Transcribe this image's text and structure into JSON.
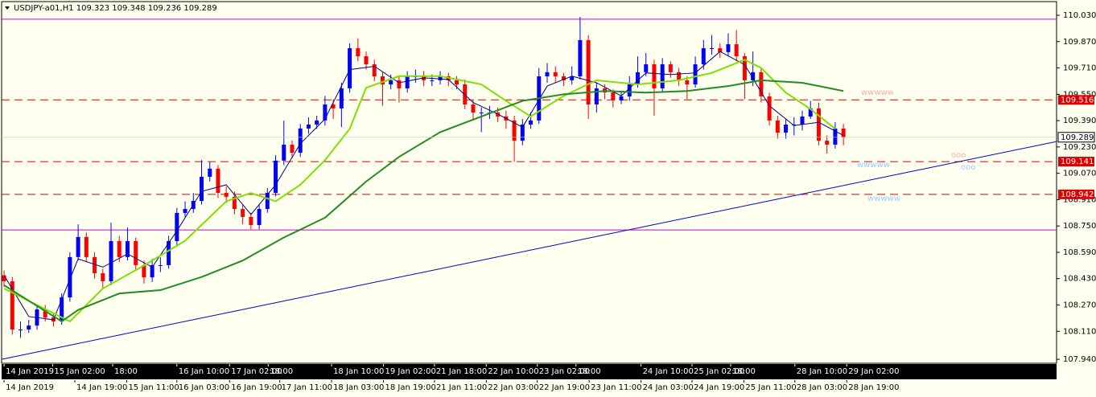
{
  "chart_data": {
    "type": "candlestick",
    "title": "USDJPY-a01,H1  109.323 109.348 109.236 109.289",
    "up_color": "#0000ff",
    "down_color": "#ff0000",
    "ohlc": [
      [
        108.45,
        108.48,
        108.38,
        108.414
      ],
      [
        108.414,
        108.44,
        108.09,
        108.121
      ],
      [
        108.121,
        108.17,
        108.07,
        108.121
      ],
      [
        108.121,
        108.18,
        108.1,
        108.145
      ],
      [
        108.145,
        108.27,
        108.12,
        108.243
      ],
      [
        108.243,
        108.27,
        108.17,
        108.194
      ],
      [
        108.194,
        108.22,
        108.14,
        108.17
      ],
      [
        108.17,
        108.34,
        108.15,
        108.316
      ],
      [
        108.316,
        108.59,
        108.29,
        108.561
      ],
      [
        108.561,
        108.76,
        108.54,
        108.683
      ],
      [
        108.683,
        108.71,
        108.53,
        108.561
      ],
      [
        108.561,
        108.59,
        108.43,
        108.463
      ],
      [
        108.463,
        108.49,
        108.37,
        108.414
      ],
      [
        108.414,
        108.77,
        108.39,
        108.658
      ],
      [
        108.658,
        108.69,
        108.53,
        108.561
      ],
      [
        108.561,
        108.74,
        108.54,
        108.658
      ],
      [
        108.658,
        108.68,
        108.48,
        108.512
      ],
      [
        108.512,
        108.54,
        108.4,
        108.438
      ],
      [
        108.438,
        108.55,
        108.41,
        108.512
      ],
      [
        108.512,
        108.56,
        108.47,
        108.512
      ],
      [
        108.512,
        108.69,
        108.49,
        108.658
      ],
      [
        108.658,
        108.86,
        108.63,
        108.829
      ],
      [
        108.829,
        108.9,
        108.8,
        108.853
      ],
      [
        108.853,
        108.95,
        108.83,
        108.902
      ],
      [
        108.902,
        109.15,
        108.88,
        109.049
      ],
      [
        109.049,
        109.14,
        109.02,
        109.098
      ],
      [
        109.098,
        109.12,
        108.92,
        108.951
      ],
      [
        108.951,
        108.99,
        108.89,
        108.927
      ],
      [
        108.927,
        108.96,
        108.82,
        108.853
      ],
      [
        108.853,
        108.88,
        108.76,
        108.805
      ],
      [
        108.805,
        108.83,
        108.73,
        108.756
      ],
      [
        108.756,
        108.88,
        108.73,
        108.853
      ],
      [
        108.853,
        108.98,
        108.83,
        108.951
      ],
      [
        108.951,
        109.18,
        108.93,
        109.147
      ],
      [
        109.147,
        109.39,
        109.12,
        109.244
      ],
      [
        109.244,
        109.27,
        109.16,
        109.195
      ],
      [
        109.195,
        109.37,
        109.17,
        109.342
      ],
      [
        109.342,
        109.41,
        109.31,
        109.366
      ],
      [
        109.366,
        109.42,
        109.34,
        109.391
      ],
      [
        109.391,
        109.54,
        109.36,
        109.488
      ],
      [
        109.488,
        109.52,
        109.4,
        109.464
      ],
      [
        109.464,
        109.62,
        109.35,
        109.586
      ],
      [
        109.586,
        109.86,
        109.56,
        109.83
      ],
      [
        109.83,
        109.89,
        109.75,
        109.781
      ],
      [
        109.781,
        109.81,
        109.7,
        109.732
      ],
      [
        109.732,
        109.76,
        109.63,
        109.659
      ],
      [
        109.659,
        109.69,
        109.48,
        109.61
      ],
      [
        109.61,
        109.67,
        109.58,
        109.635
      ],
      [
        109.635,
        109.66,
        109.5,
        109.586
      ],
      [
        109.586,
        109.69,
        109.56,
        109.659
      ],
      [
        109.659,
        109.7,
        109.62,
        109.659
      ],
      [
        109.659,
        109.69,
        109.6,
        109.635
      ],
      [
        109.635,
        109.67,
        109.6,
        109.635
      ],
      [
        109.635,
        109.69,
        109.61,
        109.659
      ],
      [
        109.659,
        109.68,
        109.6,
        109.635
      ],
      [
        109.635,
        109.66,
        109.58,
        109.61
      ],
      [
        109.61,
        109.64,
        109.46,
        109.488
      ],
      [
        109.488,
        109.52,
        109.4,
        109.439
      ],
      [
        109.439,
        109.47,
        109.32,
        109.439
      ],
      [
        109.439,
        109.48,
        109.4,
        109.439
      ],
      [
        109.439,
        109.47,
        109.38,
        109.415
      ],
      [
        109.415,
        109.45,
        109.34,
        109.391
      ],
      [
        109.391,
        109.42,
        109.14,
        109.268
      ],
      [
        109.268,
        109.4,
        109.24,
        109.366
      ],
      [
        109.366,
        109.44,
        109.34,
        109.391
      ],
      [
        109.391,
        109.71,
        109.37,
        109.659
      ],
      [
        109.659,
        109.74,
        109.62,
        109.684
      ],
      [
        109.684,
        109.72,
        109.62,
        109.659
      ],
      [
        109.659,
        109.68,
        109.6,
        109.635
      ],
      [
        109.635,
        109.72,
        109.61,
        109.659
      ],
      [
        109.659,
        110.02,
        109.64,
        109.879
      ],
      [
        109.879,
        109.91,
        109.4,
        109.488
      ],
      [
        109.488,
        109.62,
        109.44,
        109.586
      ],
      [
        109.586,
        109.61,
        109.52,
        109.561
      ],
      [
        109.561,
        109.58,
        109.47,
        109.513
      ],
      [
        109.513,
        109.57,
        109.49,
        109.537
      ],
      [
        109.537,
        109.66,
        109.51,
        109.61
      ],
      [
        109.61,
        109.78,
        109.59,
        109.684
      ],
      [
        109.684,
        109.8,
        109.66,
        109.732
      ],
      [
        109.732,
        109.76,
        109.42,
        109.586
      ],
      [
        109.586,
        109.77,
        109.56,
        109.732
      ],
      [
        109.732,
        109.75,
        109.65,
        109.684
      ],
      [
        109.684,
        109.71,
        109.6,
        109.635
      ],
      [
        109.635,
        109.66,
        109.52,
        109.61
      ],
      [
        109.61,
        109.78,
        109.59,
        109.732
      ],
      [
        109.732,
        109.88,
        109.7,
        109.83
      ],
      [
        109.83,
        109.91,
        109.79,
        109.83
      ],
      [
        109.83,
        109.86,
        109.77,
        109.806
      ],
      [
        109.806,
        109.92,
        109.78,
        109.854
      ],
      [
        109.854,
        109.94,
        109.75,
        109.781
      ],
      [
        109.781,
        109.8,
        109.52,
        109.635
      ],
      [
        109.635,
        109.81,
        109.6,
        109.684
      ],
      [
        109.684,
        109.71,
        109.5,
        109.537
      ],
      [
        109.537,
        109.56,
        109.36,
        109.391
      ],
      [
        109.391,
        109.42,
        109.28,
        109.317
      ],
      [
        109.317,
        109.4,
        109.28,
        109.366
      ],
      [
        109.366,
        109.41,
        109.3,
        109.366
      ],
      [
        109.366,
        109.45,
        109.33,
        109.415
      ],
      [
        109.415,
        109.51,
        109.4,
        109.464
      ],
      [
        109.464,
        109.5,
        109.24,
        109.268
      ],
      [
        109.268,
        109.3,
        109.19,
        109.244
      ],
      [
        109.244,
        109.38,
        109.22,
        109.342
      ],
      [
        109.342,
        109.37,
        109.24,
        109.289
      ]
    ],
    "series": [
      {
        "color": "#000080",
        "width": 1,
        "x": [
          0,
          3,
          6,
          9,
          12,
          15,
          18,
          21,
          24,
          27,
          30,
          33,
          36,
          39,
          42,
          45,
          48,
          51,
          54,
          57,
          60,
          63,
          66,
          69,
          72,
          75,
          78,
          81,
          84,
          87,
          90,
          93,
          96,
          99,
          102
        ],
        "values": [
          108.45,
          108.2,
          108.18,
          108.55,
          108.5,
          108.58,
          108.5,
          108.72,
          108.96,
          109.0,
          108.82,
          109.0,
          109.25,
          109.4,
          109.7,
          109.72,
          109.62,
          109.65,
          109.64,
          109.5,
          109.43,
          109.35,
          109.6,
          109.66,
          109.62,
          109.54,
          109.68,
          109.67,
          109.68,
          109.81,
          109.73,
          109.48,
          109.36,
          109.38,
          109.3
        ]
      },
      {
        "color": "#7fe000",
        "width": 2,
        "x": [
          0,
          4,
          8,
          12,
          17,
          22,
          27,
          30,
          33,
          36,
          39,
          42,
          44,
          48,
          53,
          58,
          61,
          64,
          68,
          72,
          77,
          82,
          86,
          90,
          92,
          95,
          98,
          101
        ],
        "values": [
          108.37,
          108.27,
          108.17,
          108.37,
          108.51,
          108.66,
          108.9,
          108.95,
          108.9,
          109.0,
          109.15,
          109.34,
          109.59,
          109.66,
          109.66,
          109.61,
          109.51,
          109.415,
          109.54,
          109.635,
          109.61,
          109.635,
          109.68,
          109.76,
          109.71,
          109.56,
          109.46,
          109.34
        ]
      },
      {
        "color": "#228b22",
        "width": 2,
        "x": [
          0,
          7,
          9,
          14,
          19,
          24,
          29,
          34,
          39,
          44,
          48,
          53,
          58,
          63,
          68,
          73,
          78,
          83,
          88,
          92,
          97,
          102
        ],
        "values": [
          108.39,
          108.17,
          108.24,
          108.34,
          108.36,
          108.44,
          108.54,
          108.68,
          108.8,
          109.02,
          109.17,
          109.32,
          109.415,
          109.51,
          109.55,
          109.57,
          109.56,
          109.57,
          109.6,
          109.635,
          109.62,
          109.57
        ]
      }
    ],
    "trendline": {
      "color": "#0000c0",
      "x": [
        -0.3,
        127.9
      ],
      "values": [
        107.94,
        109.263
      ]
    },
    "hlines": [
      {
        "value": 110.006,
        "color": "#cc00cc",
        "dashed": false
      },
      {
        "value": 108.726,
        "color": "#cc00cc",
        "dashed": false
      },
      {
        "value": 109.516,
        "color": "#dd0000",
        "dashed": true,
        "labeled": true
      },
      {
        "value": 109.141,
        "color": "#dd0000",
        "dashed": true,
        "labeled": true
      },
      {
        "value": 108.942,
        "color": "#dd0000",
        "dashed": true,
        "labeled": true
      }
    ],
    "last_price": 109.289,
    "annotations": [
      {
        "text": "wwwww",
        "color": "#ffaaaa"
      },
      {
        "text": "wwwww",
        "color": "#99ccff"
      },
      {
        "text": "wwwww",
        "color": "#99ccff"
      },
      {
        "text": "ooo",
        "color": "#ffaaaa"
      },
      {
        "text": "ooo",
        "color": "#99ccff"
      }
    ],
    "xlim": [
      -0.3,
      127.9
    ],
    "ylim": [
      107.916,
      110.113
    ],
    "yticks": [
      {
        "value": 110.03,
        "label": "110.030"
      },
      {
        "value": 109.87,
        "label": "109.870"
      },
      {
        "value": 109.71,
        "label": "109.710"
      },
      {
        "value": 109.55,
        "label": "109.550"
      },
      {
        "value": 109.39,
        "label": "109.390"
      },
      {
        "value": 109.23,
        "label": "109.230"
      },
      {
        "value": 109.07,
        "label": "109.070"
      },
      {
        "value": 108.91,
        "label": "108.910"
      },
      {
        "value": 108.75,
        "label": "108.750"
      },
      {
        "value": 108.59,
        "label": "108.590"
      },
      {
        "value": 108.43,
        "label": "108.430"
      },
      {
        "value": 108.27,
        "label": "108.270"
      },
      {
        "value": 108.11,
        "label": "108.110"
      },
      {
        "value": 107.94,
        "label": "107.940"
      }
    ],
    "xticks": [
      {
        "value": 0,
        "label": "14 Jan 2019"
      },
      {
        "value": 5.9,
        "label": "15 Jan 02:00"
      },
      {
        "value": 13.2,
        "label": "18:00"
      },
      {
        "value": 21,
        "label": "16 Jan 10:00"
      },
      {
        "value": 27.4,
        "label": "17 Jan 02:00"
      },
      {
        "value": 32.1,
        "label": "18:00"
      },
      {
        "value": 39.8,
        "label": "18 Jan 10:00"
      },
      {
        "value": 46.1,
        "label": "19 Jan 02:00"
      },
      {
        "value": 52.3,
        "label": "21 Jan 18:00"
      },
      {
        "value": 58.6,
        "label": "22 Jan 10:00"
      },
      {
        "value": 64.8,
        "label": "23 Jan 02:00"
      },
      {
        "value": 69.5,
        "label": "18:00"
      },
      {
        "value": 77.4,
        "label": "24 Jan 10:00"
      },
      {
        "value": 83.6,
        "label": "25 Jan 02:00"
      },
      {
        "value": 88.3,
        "label": "18:00"
      },
      {
        "value": 96.1,
        "label": "28 Jan 10:00"
      },
      {
        "value": 102.4,
        "label": "29 Jan 02:00"
      }
    ],
    "xticks2": [
      {
        "value": 0,
        "label": "14 Jan 2019"
      },
      {
        "value": 8.6,
        "label": "14 Jan 19:00"
      },
      {
        "value": 14.9,
        "label": "15 Jan 11:00"
      },
      {
        "value": 21,
        "label": "16 Jan 03:00"
      },
      {
        "value": 27.4,
        "label": "16 Jan 19:00"
      },
      {
        "value": 33.5,
        "label": "17 Jan 11:00"
      },
      {
        "value": 39.8,
        "label": "18 Jan 03:00"
      },
      {
        "value": 46.1,
        "label": "18 Jan 19:00"
      },
      {
        "value": 52.3,
        "label": "21 Jan 11:00"
      },
      {
        "value": 58.6,
        "label": "22 Jan 03:00"
      },
      {
        "value": 64.8,
        "label": "22 Jan 19:00"
      },
      {
        "value": 71.1,
        "label": "23 Jan 11:00"
      },
      {
        "value": 77.4,
        "label": "24 Jan 03:00"
      },
      {
        "value": 83.6,
        "label": "24 Jan 19:00"
      },
      {
        "value": 89.9,
        "label": "25 Jan 11:00"
      },
      {
        "value": 96.1,
        "label": "28 Jan 03:00"
      },
      {
        "value": 102.4,
        "label": "28 Jan 19:00"
      }
    ]
  }
}
